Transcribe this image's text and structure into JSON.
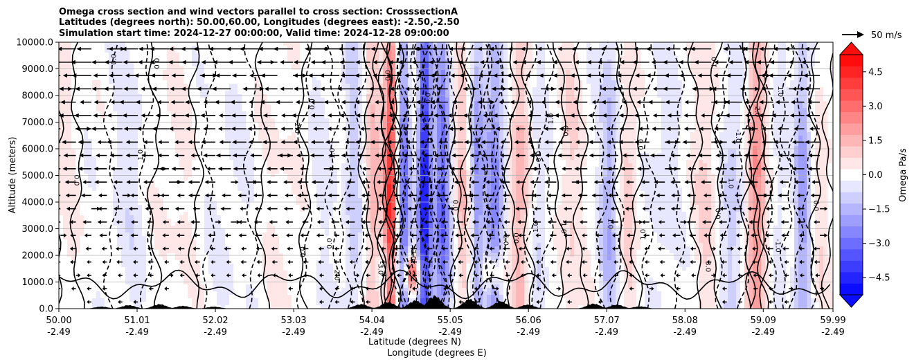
{
  "chart_data": {
    "type": "heatmap",
    "subtype": "cross-section contour with wind vectors",
    "title_lines": [
      "Omega cross section and wind vectors parallel to cross section: CrosssectionA",
      "Latitudes (degrees north): 50.00,60.00, Longitudes (degrees east): -2.50,-2.50",
      "Simulation start time: 2024-12-27 00:00:00, Valid time: 2024-12-28 09:00:00"
    ],
    "ylabel": "Altitude (meters)",
    "xlabel_lines": [
      "Latitude (degrees N)",
      "Longitude (degrees E)"
    ],
    "ylim": [
      0,
      10000
    ],
    "xlim": [
      50.0,
      59.99
    ],
    "y_ticks": [
      0,
      1000,
      2000,
      3000,
      4000,
      5000,
      6000,
      7000,
      8000,
      9000,
      10000
    ],
    "y_tick_labels": [
      "0.0",
      "1000.0",
      "2000.0",
      "3000.0",
      "4000.0",
      "5000.0",
      "6000.0",
      "7000.0",
      "8000.0",
      "9000.0",
      "10000.0"
    ],
    "x_ticks": [
      {
        "lat": 50.0,
        "lat_label": "50.00",
        "lon_label": "-2.49"
      },
      {
        "lat": 51.01,
        "lat_label": "51.01",
        "lon_label": "-2.49"
      },
      {
        "lat": 52.02,
        "lat_label": "52.02",
        "lon_label": "-2.49"
      },
      {
        "lat": 53.03,
        "lat_label": "53.03",
        "lon_label": "-2.49"
      },
      {
        "lat": 54.04,
        "lat_label": "54.04",
        "lon_label": "-2.49"
      },
      {
        "lat": 55.05,
        "lat_label": "55.05",
        "lon_label": "-2.49"
      },
      {
        "lat": 56.06,
        "lat_label": "56.06",
        "lon_label": "-2.49"
      },
      {
        "lat": 57.07,
        "lat_label": "57.07",
        "lon_label": "-2.49"
      },
      {
        "lat": 58.08,
        "lat_label": "58.08",
        "lon_label": "-2.49"
      },
      {
        "lat": 59.09,
        "lat_label": "59.09",
        "lon_label": "-2.49"
      },
      {
        "lat": 59.99,
        "lat_label": "59.99",
        "lon_label": "-2.49"
      }
    ],
    "grid": "horizontal",
    "colorbar": {
      "label": "Omega Pa/s",
      "range": [
        -5.25,
        5.25
      ],
      "extend": "both",
      "ticks": [
        -4.5,
        -3.0,
        -1.5,
        0.0,
        1.5,
        3.0,
        4.5
      ],
      "tick_labels": [
        "−4.5",
        "−3.0",
        "−1.5",
        "0.0",
        "1.5",
        "3.0",
        "4.5"
      ],
      "colormap": "bwr",
      "levels": 21
    },
    "quiver_key": {
      "label": "50 m/s",
      "speed": 50
    },
    "wind_direction": "mostly toward lower latitude (leftward) aloft",
    "omega_bands": [
      {
        "lat": 50.1,
        "width": 0.15,
        "omega": 0.4
      },
      {
        "lat": 50.9,
        "width": 0.25,
        "omega": -0.5
      },
      {
        "lat": 51.5,
        "width": 0.3,
        "omega": 0.3
      },
      {
        "lat": 52.2,
        "width": 0.3,
        "omega": -0.3
      },
      {
        "lat": 52.9,
        "width": 0.3,
        "omega": 0.3
      },
      {
        "lat": 53.35,
        "width": 0.2,
        "omega": -0.4
      },
      {
        "lat": 53.8,
        "width": 0.12,
        "omega": -1.2
      },
      {
        "lat": 54.05,
        "width": 0.1,
        "omega": 1.6
      },
      {
        "lat": 54.28,
        "width": 0.08,
        "omega": 4.2
      },
      {
        "lat": 54.45,
        "width": 0.08,
        "omega": -3.0
      },
      {
        "lat": 54.72,
        "width": 0.09,
        "omega": -5.0
      },
      {
        "lat": 54.95,
        "width": 0.1,
        "omega": -3.2
      },
      {
        "lat": 55.2,
        "width": 0.08,
        "omega": 1.2
      },
      {
        "lat": 55.4,
        "width": 0.08,
        "omega": -2.0
      },
      {
        "lat": 55.62,
        "width": 0.12,
        "omega": -2.6
      },
      {
        "lat": 55.95,
        "width": 0.12,
        "omega": 1.6
      },
      {
        "lat": 56.2,
        "width": 0.1,
        "omega": -0.8
      },
      {
        "lat": 56.6,
        "width": 0.15,
        "omega": 0.8
      },
      {
        "lat": 57.1,
        "width": 0.12,
        "omega": -1.6
      },
      {
        "lat": 57.35,
        "width": 0.12,
        "omega": 1.0
      },
      {
        "lat": 57.8,
        "width": 0.2,
        "omega": -0.5
      },
      {
        "lat": 58.35,
        "width": 0.15,
        "omega": 0.8
      },
      {
        "lat": 58.7,
        "width": 0.15,
        "omega": -1.0
      },
      {
        "lat": 59.0,
        "width": 0.12,
        "omega": 2.5
      },
      {
        "lat": 59.3,
        "width": 0.1,
        "omega": -0.6
      },
      {
        "lat": 59.6,
        "width": 0.1,
        "omega": -2.0
      },
      {
        "lat": 59.85,
        "width": 0.1,
        "omega": 0.6
      }
    ],
    "low_level_features": [
      {
        "lat": 54.55,
        "alt": 1300,
        "omega": 4.0
      },
      {
        "lat": 55.6,
        "alt": 1400,
        "omega": 2.2
      },
      {
        "lat": 54.3,
        "alt": 1500,
        "omega": -1.5
      }
    ],
    "terrain": [
      {
        "lat": 50.55,
        "height": 80
      },
      {
        "lat": 50.9,
        "height": 140
      },
      {
        "lat": 51.3,
        "height": 180
      },
      {
        "lat": 51.6,
        "height": 110
      },
      {
        "lat": 52.0,
        "height": 80
      },
      {
        "lat": 53.9,
        "height": 180
      },
      {
        "lat": 54.25,
        "height": 260
      },
      {
        "lat": 54.6,
        "height": 320
      },
      {
        "lat": 54.85,
        "height": 520
      },
      {
        "lat": 55.3,
        "height": 380
      },
      {
        "lat": 55.7,
        "height": 300
      },
      {
        "lat": 56.05,
        "height": 160
      },
      {
        "lat": 56.9,
        "height": 200
      },
      {
        "lat": 57.2,
        "height": 160
      },
      {
        "lat": 57.5,
        "height": 90
      }
    ],
    "contour_labels": [
      "0.0",
      "0.0",
      "0.0",
      "0.0",
      "0.0",
      "0.0",
      "0.0",
      "0.0",
      "0.0",
      "0.0",
      "0.0",
      "0.0",
      "0.0",
      "0.0",
      "0.0",
      "1.0",
      "1.0",
      "1.0",
      "1.0",
      "1.0",
      "1.0",
      "1.0",
      "1.0",
      "1.0",
      "1.0",
      "-1.0",
      "-1.0",
      "-1.0",
      "-2.0",
      "-2.0",
      "2.0",
      "2.0",
      "-3.0",
      "3.0"
    ]
  }
}
